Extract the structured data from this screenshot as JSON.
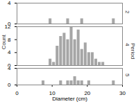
{
  "chart_data": {
    "type": "histogram",
    "xlabel": "Diameter (cm)",
    "ylabel": "Count",
    "facet_label": "Period",
    "xlim": [
      0,
      30
    ],
    "xticks": [
      0,
      10,
      20,
      30
    ],
    "color": "#a6a6a6",
    "bins": [
      6,
      7,
      8,
      9,
      10,
      11,
      12,
      13,
      14,
      15,
      16,
      17,
      18,
      19,
      20,
      21,
      22,
      23,
      24,
      25,
      26,
      27,
      28,
      29
    ],
    "panels": [
      {
        "name": "2",
        "ylim": [
          0,
          4
        ],
        "yticks": [
          0,
          4
        ],
        "counts": [
          0,
          0,
          0,
          1,
          0,
          0,
          0,
          0,
          1,
          0,
          0,
          0,
          1,
          0,
          0,
          0,
          0,
          0,
          0,
          0,
          0,
          1,
          0
        ]
      },
      {
        "name": "4",
        "ylim": [
          0,
          12
        ],
        "yticks": [
          0,
          4,
          8,
          12
        ],
        "counts": [
          0,
          0,
          0,
          2,
          1,
          6,
          9,
          10,
          8,
          12,
          8,
          11,
          5,
          7,
          4,
          4,
          2,
          1,
          1,
          0,
          0,
          0,
          0
        ]
      },
      {
        "name": "5",
        "ylim": [
          0,
          4
        ],
        "yticks": [
          0,
          4
        ],
        "counts": [
          0,
          1,
          0,
          0,
          0,
          0,
          1,
          0,
          1,
          1,
          2,
          1,
          1,
          0,
          1,
          0,
          0,
          0,
          0,
          0,
          0,
          1,
          0
        ]
      }
    ]
  }
}
